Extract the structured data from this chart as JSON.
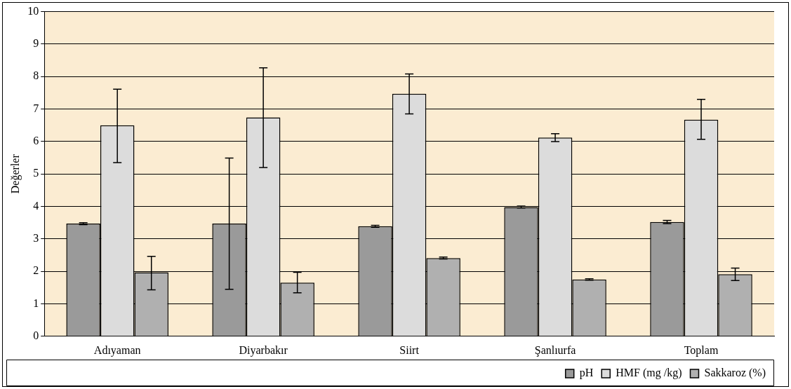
{
  "chart_data": {
    "type": "bar",
    "ylabel": "Değerler",
    "categories": [
      "Adıyaman",
      "Diyarbakır",
      "Siirt",
      "Şanlıurfa",
      "Toplam"
    ],
    "series": [
      {
        "name": "pH",
        "color": "#9a9a9a",
        "values": [
          3.47,
          3.47,
          3.39,
          3.98,
          3.52
        ],
        "errors": [
          0.03,
          2.02,
          0.03,
          0.03,
          0.05
        ]
      },
      {
        "name": "HMF (mg /kg)",
        "color": "#dcdcdc",
        "values": [
          6.5,
          6.74,
          7.47,
          6.12,
          6.67
        ],
        "errors": [
          [
            5.35,
            7.61
          ],
          [
            5.2,
            8.27
          ],
          [
            6.85,
            8.08
          ],
          [
            6.0,
            6.24
          ],
          [
            6.07,
            7.3
          ]
        ]
      },
      {
        "name": "Sakkaroz (%)",
        "color": "#b0b0b0",
        "values": [
          1.97,
          1.65,
          2.41,
          1.75,
          1.91
        ],
        "errors": [
          [
            1.43,
            2.46
          ],
          [
            1.34,
            1.97
          ],
          0.03,
          0.02,
          [
            1.72,
            2.1
          ]
        ]
      }
    ],
    "ylim": [
      0,
      10
    ],
    "yticks": [
      0,
      1,
      2,
      3,
      4,
      5,
      6,
      7,
      8,
      9,
      10
    ],
    "grid": "y",
    "legend": "bottom right"
  }
}
